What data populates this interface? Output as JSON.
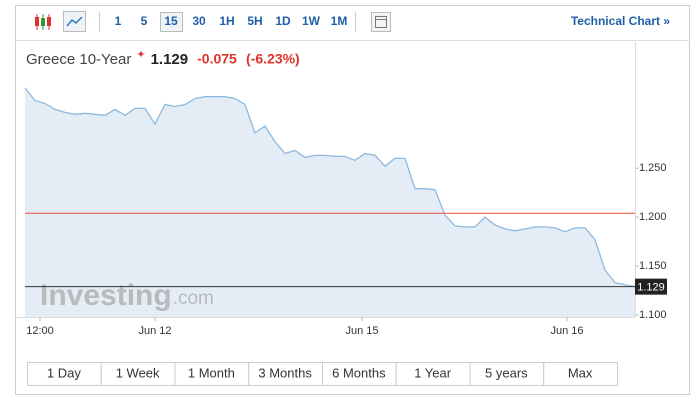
{
  "toolbar": {
    "intervals": [
      "1",
      "5",
      "15",
      "30",
      "1H",
      "5H",
      "1D",
      "1W",
      "1M"
    ],
    "active": "15",
    "technical": "Technical Chart »"
  },
  "header": {
    "name": "Greece 10-Year",
    "price": "1.129",
    "change": "-0.075",
    "change_pct": "(-6.23%)"
  },
  "watermark": {
    "brand": "Investing",
    "domain": ".com"
  },
  "chart_data": {
    "type": "area",
    "color": "#8db9e0",
    "fill": "#e4edf5",
    "x": [
      0,
      1,
      2,
      3,
      4,
      5,
      6,
      7,
      8,
      9,
      10,
      11,
      12,
      13,
      14,
      15,
      16,
      17,
      18,
      19,
      20,
      21,
      22,
      23,
      24,
      25,
      26,
      27,
      28,
      29,
      30,
      31,
      32,
      33,
      34,
      35,
      36,
      37,
      38,
      39,
      40,
      41,
      42,
      43,
      44,
      45,
      46,
      47,
      48,
      49,
      50,
      51,
      52,
      53,
      54,
      55,
      56,
      57,
      58,
      59,
      60,
      61
    ],
    "values": [
      1.332,
      1.319,
      1.316,
      1.31,
      1.307,
      1.305,
      1.306,
      1.305,
      1.304,
      1.31,
      1.304,
      1.311,
      1.311,
      1.295,
      1.315,
      1.313,
      1.315,
      1.321,
      1.323,
      1.323,
      1.323,
      1.321,
      1.315,
      1.286,
      1.293,
      1.277,
      1.265,
      1.268,
      1.261,
      1.263,
      1.263,
      1.262,
      1.262,
      1.258,
      1.265,
      1.263,
      1.252,
      1.26,
      1.26,
      1.229,
      1.229,
      1.228,
      1.202,
      1.191,
      1.19,
      1.19,
      1.2,
      1.192,
      1.188,
      1.186,
      1.188,
      1.19,
      1.19,
      1.189,
      1.185,
      1.189,
      1.189,
      1.177,
      1.146,
      1.133,
      1.131,
      1.129
    ],
    "xlim": [
      0,
      61
    ],
    "xticks": [
      {
        "value": 1.5,
        "label": "12:00"
      },
      {
        "value": 13,
        "label": "Jun 12"
      },
      {
        "value": 33.7,
        "label": "Jun 15"
      },
      {
        "value": 54.2,
        "label": "Jun 16"
      }
    ],
    "ylim": [
      1.098,
      1.338
    ],
    "yticks": [
      {
        "value": 1.1,
        "label": "1.100"
      },
      {
        "value": 1.15,
        "label": "1.150"
      },
      {
        "value": 1.2,
        "label": "1.200"
      },
      {
        "value": 1.25,
        "label": "1.250"
      }
    ],
    "reference_line": {
      "value": 1.204,
      "color": "#e8503f"
    },
    "current": {
      "value": 1.129,
      "label": "1.129"
    }
  },
  "ranges": [
    "1 Day",
    "1 Week",
    "1 Month",
    "3 Months",
    "6 Months",
    "1 Year",
    "5 years",
    "Max"
  ]
}
